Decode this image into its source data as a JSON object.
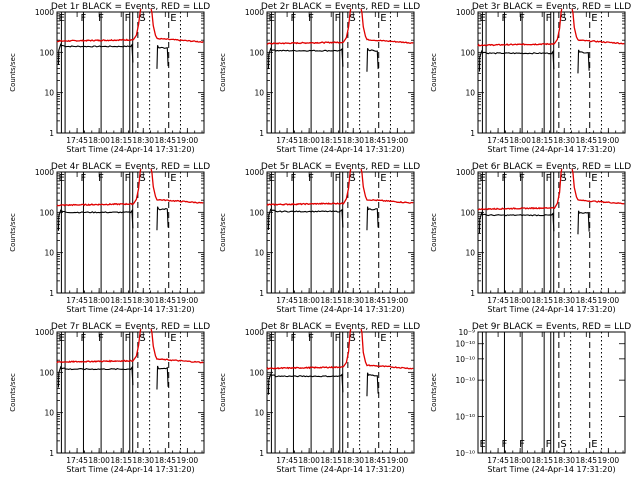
{
  "chart_data": {
    "type": "line",
    "x_axis": {
      "label": "Start Time (24-Apr-14 17:31:20)",
      "ticks": [
        "17:45",
        "18:00",
        "18:15",
        "18:30",
        "18:45",
        "19:00"
      ],
      "tick_minutes": [
        13.67,
        28.67,
        43.67,
        58.67,
        73.67,
        88.67
      ],
      "xlim_minutes": [
        0,
        100
      ]
    },
    "y_label": "Counts/sec",
    "y_scale": "log",
    "markers": {
      "solid_minutes": [
        3,
        5.5,
        18,
        30,
        45,
        49.5,
        51.5
      ],
      "dashed_minutes": [
        55,
        76
      ],
      "dotted_minutes": [
        63,
        84
      ],
      "letters": [
        {
          "text": "E",
          "minute": 1
        },
        {
          "text": "F",
          "minute": 16
        },
        {
          "text": "F",
          "minute": 28
        },
        {
          "text": "F",
          "minute": 46
        },
        {
          "text": "S",
          "minute": 56
        },
        {
          "text": "E",
          "minute": 77
        }
      ]
    },
    "panels": [
      {
        "title": "Det 1r BLACK = Events, RED = LLD",
        "ylim": [
          1,
          1000
        ],
        "ytick_values": [
          1,
          10,
          100,
          1000
        ],
        "ytick_labels": [
          "1",
          "10",
          "100",
          "1000"
        ],
        "events_level": 140,
        "lld_level": 190,
        "lld_peak": 1000,
        "lld_tail": 175,
        "events_tail": 130,
        "letters_position": "top"
      },
      {
        "title": "Det 2r BLACK = Events, RED = LLD",
        "ylim": [
          1,
          1000
        ],
        "ytick_values": [
          1,
          10,
          100,
          1000
        ],
        "ytick_labels": [
          "1",
          "10",
          "100",
          "1000"
        ],
        "events_level": 110,
        "lld_level": 165,
        "lld_peak": 1000,
        "lld_tail": 165,
        "events_tail": 110,
        "letters_position": "top"
      },
      {
        "title": "Det 3r BLACK = Events, RED = LLD",
        "ylim": [
          1,
          1000
        ],
        "ytick_values": [
          1,
          10,
          100,
          1000
        ],
        "ytick_labels": [
          "1",
          "10",
          "100",
          "1000"
        ],
        "events_level": 95,
        "lld_level": 150,
        "lld_peak": 1000,
        "lld_tail": 160,
        "events_tail": 100,
        "letters_position": "top"
      },
      {
        "title": "Det 4r BLACK = Events, RED = LLD",
        "ylim": [
          1,
          1000
        ],
        "ytick_values": [
          1,
          10,
          100,
          1000
        ],
        "ytick_labels": [
          "1",
          "10",
          "100",
          "1000"
        ],
        "events_level": 100,
        "lld_level": 150,
        "lld_peak": 1000,
        "lld_tail": 165,
        "events_tail": 120,
        "letters_position": "top"
      },
      {
        "title": "Det 5r BLACK = Events, RED = LLD",
        "ylim": [
          1,
          1000
        ],
        "ytick_values": [
          1,
          10,
          100,
          1000
        ],
        "ytick_labels": [
          "1",
          "10",
          "100",
          "1000"
        ],
        "events_level": 105,
        "lld_level": 155,
        "lld_peak": 1000,
        "lld_tail": 165,
        "events_tail": 120,
        "letters_position": "top"
      },
      {
        "title": "Det 6r BLACK = Events, RED = LLD",
        "ylim": [
          1,
          1000
        ],
        "ytick_values": [
          1,
          10,
          100,
          1000
        ],
        "ytick_labels": [
          "1",
          "10",
          "100",
          "1000"
        ],
        "events_level": 85,
        "lld_level": 120,
        "lld_peak": 1000,
        "lld_tail": 160,
        "events_tail": 95,
        "letters_position": "top"
      },
      {
        "title": "Det 7r BLACK = Events, RED = LLD",
        "ylim": [
          1,
          1000
        ],
        "ytick_values": [
          1,
          10,
          100,
          1000
        ],
        "ytick_labels": [
          "1",
          "10",
          "100",
          "1000"
        ],
        "events_level": 120,
        "lld_level": 180,
        "lld_peak": 1000,
        "lld_tail": 170,
        "events_tail": 125,
        "letters_position": "top"
      },
      {
        "title": "Det 8r BLACK = Events, RED = LLD",
        "ylim": [
          1,
          1000
        ],
        "ytick_values": [
          1,
          10,
          100,
          1000
        ],
        "ytick_labels": [
          "1",
          "10",
          "100",
          "1000"
        ],
        "events_level": 80,
        "lld_level": 125,
        "lld_peak": 1000,
        "lld_tail": 120,
        "events_tail": 85,
        "letters_position": "top"
      },
      {
        "title": "Det 9r BLACK = Events, RED = LLD",
        "ylim": [
          1e-10,
          1e-09
        ],
        "ytick_values": [
          1e-10,
          2e-10,
          4e-10,
          6e-10,
          8e-10,
          1e-09
        ],
        "ytick_labels": [
          "10⁻¹⁰",
          "10⁻¹⁰",
          "10⁻¹⁰",
          "10⁻¹⁰",
          "10⁻¹⁰",
          "10⁻⁹"
        ],
        "events_level": null,
        "lld_level": null,
        "lld_peak": null,
        "lld_tail": null,
        "events_tail": null,
        "letters_position": "bottom"
      }
    ]
  }
}
